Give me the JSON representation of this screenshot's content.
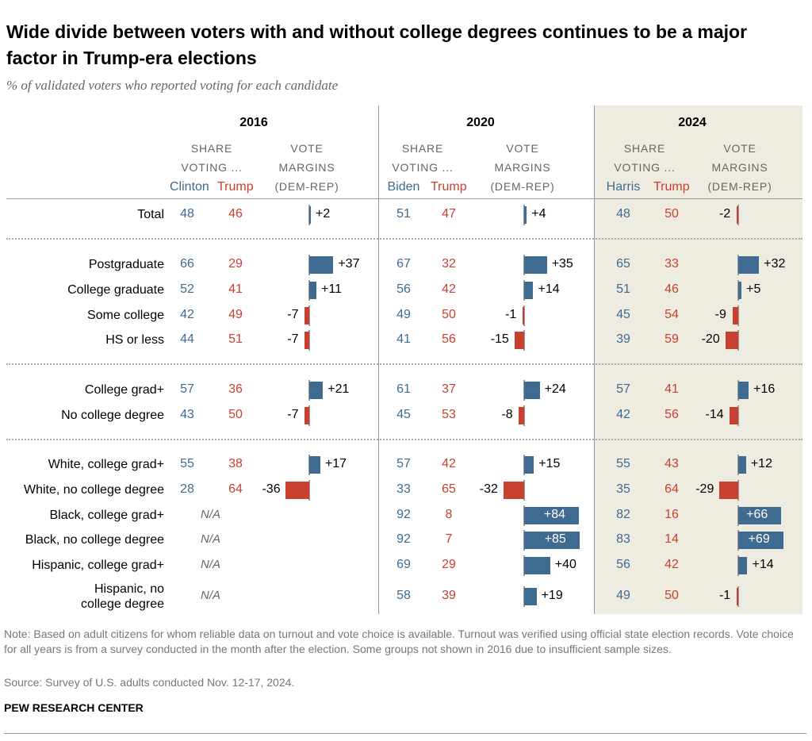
{
  "title": "Wide divide between voters with and without college degrees continues to be a major factor in Trump-era elections",
  "subtitle": "% of validated voters who reported voting for each candidate",
  "headers": {
    "share_line1": "SHARE",
    "share_line2": "VOTING ...",
    "vote_line1": "VOTE",
    "vote_line2": "MARGINS",
    "vote_line3": "(DEM-REP)"
  },
  "na_label": "N/A",
  "years": [
    {
      "year": "2016",
      "dem": "Clinton",
      "rep": "Trump"
    },
    {
      "year": "2020",
      "dem": "Biden",
      "rep": "Trump"
    },
    {
      "year": "2024",
      "dem": "Harris",
      "rep": "Trump"
    }
  ],
  "colors": {
    "dem": "#3f6b91",
    "rep": "#c8402f",
    "shade_2024": "#eeece1"
  },
  "chart_data": {
    "type": "table",
    "value_unit": "%",
    "rows": [
      {
        "label": "Total",
        "values": [
          {
            "dem": 48,
            "rep": 46,
            "margin": 2
          },
          {
            "dem": 51,
            "rep": 47,
            "margin": 4
          },
          {
            "dem": 48,
            "rep": 50,
            "margin": -2
          }
        ]
      },
      {
        "label": "Postgraduate",
        "values": [
          {
            "dem": 66,
            "rep": 29,
            "margin": 37
          },
          {
            "dem": 67,
            "rep": 32,
            "margin": 35
          },
          {
            "dem": 65,
            "rep": 33,
            "margin": 32
          }
        ]
      },
      {
        "label": "College graduate",
        "values": [
          {
            "dem": 52,
            "rep": 41,
            "margin": 11
          },
          {
            "dem": 56,
            "rep": 42,
            "margin": 14
          },
          {
            "dem": 51,
            "rep": 46,
            "margin": 5
          }
        ]
      },
      {
        "label": "Some college",
        "values": [
          {
            "dem": 42,
            "rep": 49,
            "margin": -7
          },
          {
            "dem": 49,
            "rep": 50,
            "margin": -1
          },
          {
            "dem": 45,
            "rep": 54,
            "margin": -9
          }
        ]
      },
      {
        "label": "HS or less",
        "values": [
          {
            "dem": 44,
            "rep": 51,
            "margin": -7
          },
          {
            "dem": 41,
            "rep": 56,
            "margin": -15
          },
          {
            "dem": 39,
            "rep": 59,
            "margin": -20
          }
        ]
      },
      {
        "label": "College grad+",
        "values": [
          {
            "dem": 57,
            "rep": 36,
            "margin": 21
          },
          {
            "dem": 61,
            "rep": 37,
            "margin": 24
          },
          {
            "dem": 57,
            "rep": 41,
            "margin": 16
          }
        ]
      },
      {
        "label": "No college degree",
        "values": [
          {
            "dem": 43,
            "rep": 50,
            "margin": -7
          },
          {
            "dem": 45,
            "rep": 53,
            "margin": -8
          },
          {
            "dem": 42,
            "rep": 56,
            "margin": -14
          }
        ]
      },
      {
        "label": "White, college grad+",
        "values": [
          {
            "dem": 55,
            "rep": 38,
            "margin": 17
          },
          {
            "dem": 57,
            "rep": 42,
            "margin": 15
          },
          {
            "dem": 55,
            "rep": 43,
            "margin": 12
          }
        ]
      },
      {
        "label": "White, no college degree",
        "values": [
          {
            "dem": 28,
            "rep": 64,
            "margin": -36
          },
          {
            "dem": 33,
            "rep": 65,
            "margin": -32
          },
          {
            "dem": 35,
            "rep": 64,
            "margin": -29
          }
        ]
      },
      {
        "label": "Black, college grad+",
        "values": [
          null,
          {
            "dem": 92,
            "rep": 8,
            "margin": 84
          },
          {
            "dem": 82,
            "rep": 16,
            "margin": 66
          }
        ]
      },
      {
        "label": "Black, no college degree",
        "values": [
          null,
          {
            "dem": 92,
            "rep": 7,
            "margin": 85
          },
          {
            "dem": 83,
            "rep": 14,
            "margin": 69
          }
        ]
      },
      {
        "label": "Hispanic, college grad+",
        "values": [
          null,
          {
            "dem": 69,
            "rep": 29,
            "margin": 40
          },
          {
            "dem": 56,
            "rep": 42,
            "margin": 14
          }
        ]
      },
      {
        "label": "Hispanic, no college degree",
        "label_lines": [
          "Hispanic, no",
          "college degree"
        ],
        "values": [
          null,
          {
            "dem": 58,
            "rep": 39,
            "margin": 19
          },
          {
            "dem": 49,
            "rep": 50,
            "margin": -1
          }
        ]
      }
    ]
  },
  "note": "Note: Based on adult citizens for whom reliable data on turnout and vote choice is available. Turnout was verified using official state election records. Vote choice for all years is from a survey conducted in the month after the election. Some groups not shown in 2016 due to insufficient sample sizes.",
  "source": "Source: Survey of U.S. adults conducted Nov. 12-17, 2024.",
  "brand": "PEW RESEARCH CENTER"
}
